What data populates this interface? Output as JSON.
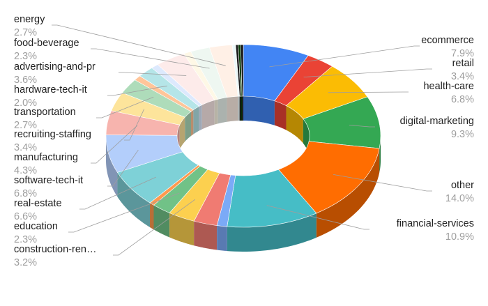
{
  "chart_data": {
    "type": "pie",
    "style": "3d-donut",
    "legend": "none",
    "slices": [
      {
        "label": "ecommerce",
        "value": 7.9,
        "value_label": "7.9%",
        "color": "#4285F4"
      },
      {
        "label": "retail",
        "value": 3.4,
        "value_label": "3.4%",
        "color": "#EA4335"
      },
      {
        "label": "health-care",
        "value": 6.8,
        "value_label": "6.8%",
        "color": "#FBBC04"
      },
      {
        "label": "digital-marketing",
        "value": 9.3,
        "value_label": "9.3%",
        "color": "#34A853"
      },
      {
        "label": "other",
        "value": 14.0,
        "value_label": "14.0%",
        "color": "#FF6D01"
      },
      {
        "label": "financial-services",
        "value": 10.9,
        "value_label": "10.9%",
        "color": "#46BDC6"
      },
      {
        "label": "",
        "value": 1.2,
        "value_label": "",
        "color": "#7BAAF7"
      },
      {
        "label": "",
        "value": 2.8,
        "value_label": "",
        "color": "#F07B72"
      },
      {
        "label": "construction-ren…",
        "value": 3.2,
        "value_label": "3.2%",
        "color": "#FCD04F"
      },
      {
        "label": "education",
        "value": 2.3,
        "value_label": "2.3%",
        "color": "#71C287"
      },
      {
        "label": "",
        "value": 0.6,
        "value_label": "",
        "color": "#FF994D"
      },
      {
        "label": "real-estate",
        "value": 6.6,
        "value_label": "6.6%",
        "color": "#7ED1D7"
      },
      {
        "label": "software-tech-it",
        "value": 6.8,
        "value_label": "6.8%",
        "color": "#B3CEFB"
      },
      {
        "label": "manufacturing",
        "value": 4.3,
        "value_label": "4.3%",
        "color": "#F7B4AE"
      },
      {
        "label": "recruiting-staffing",
        "value": 3.4,
        "value_label": "3.4%",
        "color": "#FDE49B"
      },
      {
        "label": "transportation",
        "value": 2.7,
        "value_label": "2.7%",
        "color": "#AEDCBA"
      },
      {
        "label": "",
        "value": 0.9,
        "value_label": "",
        "color": "#FFC599"
      },
      {
        "label": "hardware-tech-it",
        "value": 2.0,
        "value_label": "2.0%",
        "color": "#B5E5E8"
      },
      {
        "label": "",
        "value": 0.9,
        "value_label": "",
        "color": "#DDE9FD"
      },
      {
        "label": "advertising-and-pr",
        "value": 3.6,
        "value_label": "3.6%",
        "color": "#FDEBEA"
      },
      {
        "label": "",
        "value": 0.9,
        "value_label": "",
        "color": "#FEF8E6"
      },
      {
        "label": "food-beverage",
        "value": 2.3,
        "value_label": "2.3%",
        "color": "#EEF7F1"
      },
      {
        "label": "energy",
        "value": 2.7,
        "value_label": "2.7%",
        "color": "#FFF0E6"
      },
      {
        "label": "",
        "value": 0.4,
        "value_label": "",
        "color": "#ECF8F9"
      },
      {
        "label": "",
        "value": 0.3,
        "value_label": "",
        "color": "#1B1B1B"
      },
      {
        "label": "",
        "value": 0.3,
        "value_label": "",
        "color": "#0A3D0A"
      },
      {
        "label": "",
        "value": 0.3,
        "value_label": "",
        "color": "#111111"
      }
    ]
  }
}
